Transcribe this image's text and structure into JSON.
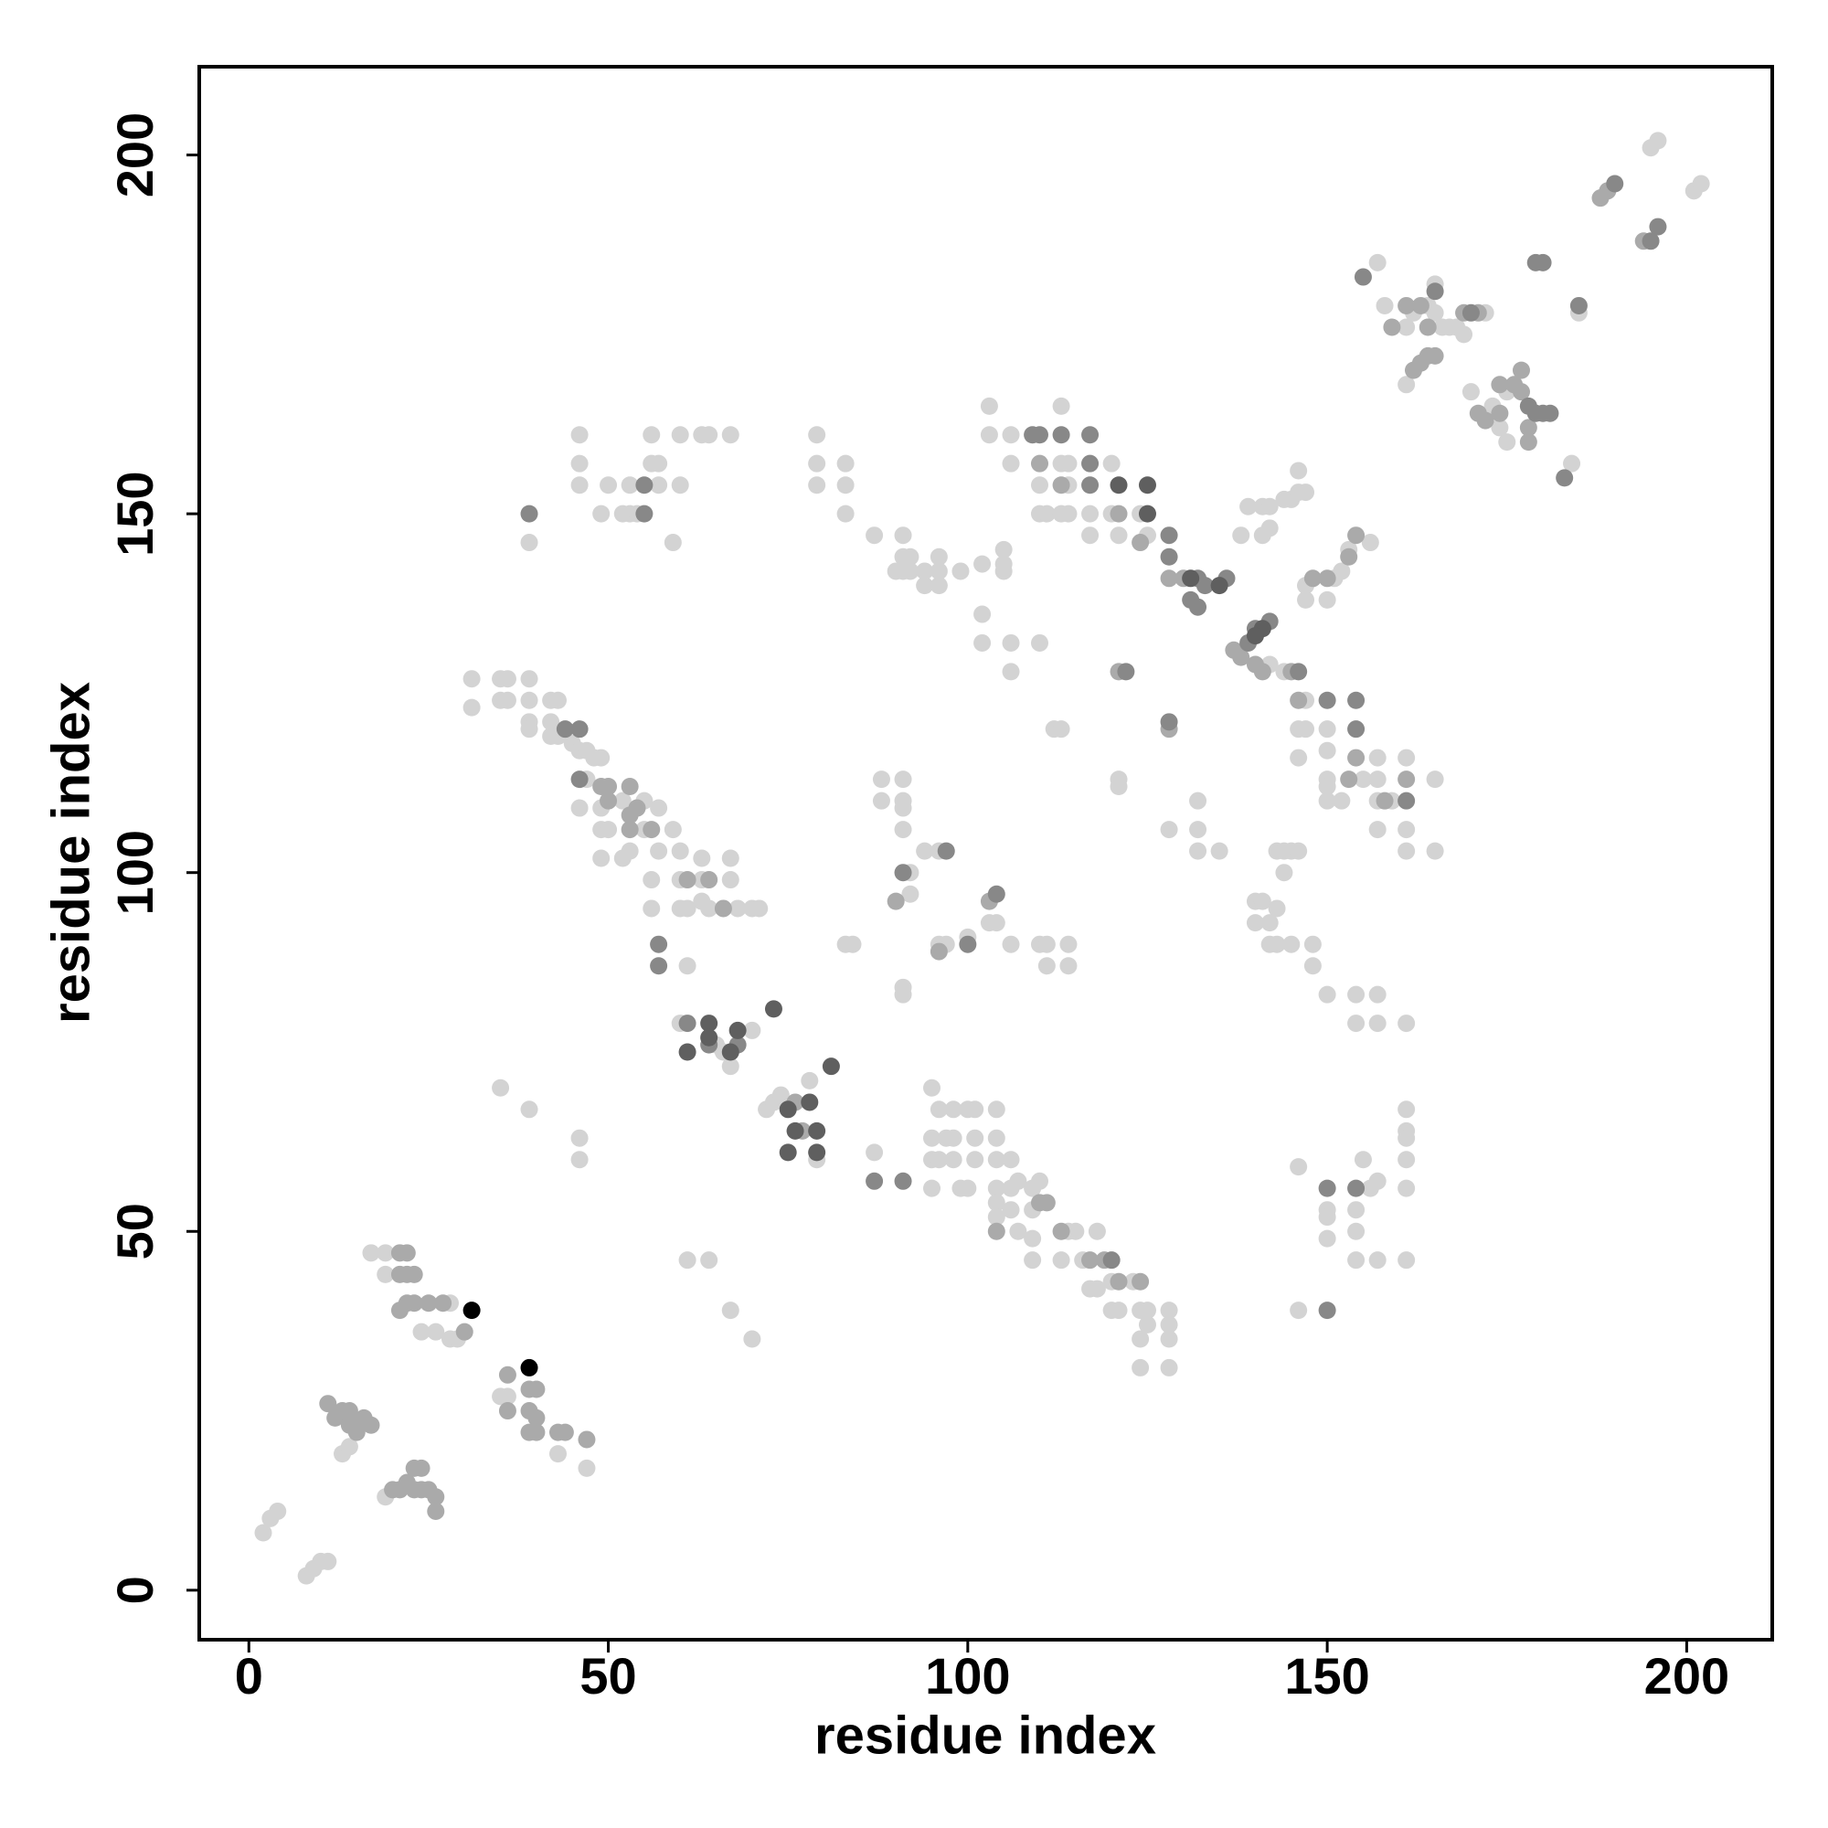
{
  "chart_data": {
    "type": "scatter",
    "x_label": "residue index",
    "y_label": "residue index",
    "xlim": [
      -6.9,
      211.9
    ],
    "ylim": [
      -6.9,
      212.3
    ],
    "xticks": [
      0,
      50,
      100,
      150,
      200
    ],
    "yticks": [
      0,
      50,
      100,
      150,
      200
    ],
    "grid": false,
    "series": [
      {
        "color": "#d3d3d3",
        "x": [
          2,
          3,
          4,
          8,
          9,
          10,
          11,
          13,
          14,
          19,
          17,
          19,
          19,
          24,
          26,
          28,
          29,
          28,
          35,
          36,
          43,
          47,
          35,
          39,
          46,
          46,
          61,
          64,
          67,
          70,
          31,
          31,
          35,
          36,
          35,
          36,
          39,
          39,
          39,
          39,
          42,
          42,
          43,
          42,
          43,
          45,
          46,
          47,
          48,
          49,
          47,
          52,
          55,
          57,
          46,
          49,
          49,
          50,
          55,
          59,
          49,
          52,
          53,
          57,
          60,
          63,
          67,
          56,
          60,
          63,
          67,
          56,
          60,
          61,
          63,
          64,
          68,
          70,
          71,
          61,
          59,
          39,
          46,
          46,
          46,
          49,
          50,
          52,
          53,
          53,
          54,
          56,
          57,
          56,
          57,
          60,
          60,
          63,
          64,
          67,
          79,
          79,
          79,
          83,
          83,
          83,
          60,
          65,
          66,
          67,
          70,
          72,
          73,
          74,
          79,
          78,
          83,
          84,
          88,
          88,
          91,
          91,
          91,
          91,
          92,
          92,
          94,
          96,
          96,
          97,
          100,
          91,
          91,
          103,
          104,
          106,
          110,
          111,
          114,
          111,
          114,
          87,
          87,
          91,
          91,
          92,
          90,
          91,
          92,
          94,
          94,
          96,
          96,
          96,
          99,
          102,
          105,
          105,
          105,
          102,
          102,
          106,
          110,
          106,
          95,
          96,
          98,
          100,
          101,
          104,
          95,
          97,
          98,
          101,
          104,
          95,
          96,
          98,
          101,
          104,
          106,
          95,
          99,
          100,
          104,
          104,
          106,
          107,
          109,
          110,
          104,
          106,
          109,
          107,
          109,
          114,
          115,
          118,
          109,
          113,
          116,
          120,
          123,
          117,
          118,
          120,
          121,
          124,
          125,
          128,
          124,
          125,
          128,
          128,
          124,
          128,
          103,
          103,
          106,
          106,
          113,
          113,
          114,
          120,
          110,
          114,
          110,
          111,
          113,
          114,
          117,
          120,
          124,
          117,
          121,
          125,
          112,
          113,
          121,
          121,
          132,
          128,
          132,
          132,
          135,
          142,
          144,
          147,
          146,
          147,
          146,
          150,
          150,
          150,
          150,
          150,
          152,
          155,
          157,
          157,
          157,
          159,
          161,
          161,
          161,
          157,
          165,
          165,
          138,
          141,
          142,
          141,
          142,
          144,
          145,
          146,
          147,
          146,
          139,
          147,
          147,
          150,
          151,
          152,
          153,
          156,
          143,
          144,
          145,
          146,
          144,
          140,
          141,
          143,
          140,
          142,
          142,
          143,
          145,
          148,
          148,
          150,
          154,
          157,
          154,
          157,
          161,
          161,
          161,
          161,
          161,
          161,
          157,
          156,
          155,
          150,
          150,
          150,
          154,
          154,
          154,
          157,
          161,
          146,
          146,
          157,
          158,
          161,
          162,
          164,
          165,
          165,
          161,
          166,
          167,
          168,
          169,
          172,
          170,
          173,
          175,
          174,
          175,
          185,
          184,
          195,
          196,
          201,
          202
        ],
        "y": [
          8,
          10,
          11,
          2,
          3,
          4,
          4,
          19,
          20,
          13,
          47,
          47,
          44,
          36,
          36,
          35,
          35,
          40,
          27,
          27,
          19,
          17,
          70,
          67,
          63,
          60,
          46,
          46,
          39,
          35,
          127,
          123,
          127,
          127,
          124,
          124,
          127,
          124,
          121,
          120,
          124,
          121,
          124,
          119,
          119,
          118,
          117,
          117,
          116,
          116,
          113,
          110,
          110,
          109,
          109,
          109,
          106,
          106,
          106,
          106,
          102,
          102,
          103,
          103,
          103,
          102,
          102,
          99,
          99,
          99,
          99,
          95,
          95,
          95,
          96,
          95,
          95,
          95,
          95,
          87,
          146,
          146,
          161,
          157,
          154,
          150,
          154,
          150,
          154,
          150,
          150,
          157,
          157,
          161,
          154,
          154,
          161,
          161,
          161,
          161,
          161,
          157,
          154,
          157,
          154,
          150,
          79,
          76,
          75,
          73,
          78,
          67,
          68,
          69,
          60,
          71,
          90,
          90,
          113,
          110,
          113,
          110,
          109,
          106,
          100,
          97,
          103,
          103,
          90,
          90,
          91,
          84,
          83,
          93,
          93,
          90,
          90,
          90,
          90,
          87,
          87,
          61,
          147,
          147,
          144,
          144,
          142,
          142,
          142,
          142,
          140,
          140,
          144,
          142,
          142,
          143,
          145,
          143,
          142,
          136,
          132,
          132,
          132,
          128,
          70,
          67,
          67,
          67,
          67,
          67,
          63,
          63,
          63,
          63,
          63,
          60,
          60,
          60,
          60,
          60,
          60,
          56,
          56,
          56,
          56,
          54,
          56,
          57,
          56,
          57,
          52,
          53,
          53,
          50,
          49,
          50,
          50,
          50,
          46,
          46,
          46,
          43,
          43,
          42,
          42,
          39,
          39,
          39,
          39,
          39,
          35,
          37,
          37,
          35,
          31,
          31,
          165,
          161,
          161,
          157,
          165,
          157,
          157,
          157,
          154,
          154,
          150,
          150,
          150,
          150,
          150,
          150,
          150,
          147,
          147,
          147,
          120,
          120,
          113,
          112,
          110,
          106,
          106,
          103,
          103,
          129,
          128,
          124,
          120,
          120,
          116,
          120,
          117,
          113,
          112,
          110,
          110,
          113,
          116,
          113,
          110,
          110,
          116,
          106,
          103,
          106,
          113,
          103,
          147,
          147,
          148,
          151,
          151,
          152,
          152,
          153,
          153,
          156,
          151,
          138,
          140,
          138,
          141,
          142,
          145,
          146,
          103,
          103,
          103,
          103,
          100,
          96,
          96,
          95,
          93,
          93,
          90,
          90,
          90,
          90,
          87,
          83,
          83,
          83,
          79,
          79,
          79,
          67,
          64,
          63,
          60,
          56,
          57,
          56,
          60,
          53,
          52,
          49,
          53,
          50,
          46,
          46,
          46,
          59,
          39,
          185,
          179,
          176,
          178,
          179,
          178,
          182,
          168,
          176,
          176,
          176,
          175,
          178,
          167,
          165,
          167,
          162,
          160,
          178,
          157,
          201,
          202,
          195,
          196
        ]
      },
      {
        "color": "#aaaaaa",
        "x": [
          11,
          12,
          13,
          14,
          14,
          15,
          15,
          16,
          17,
          20,
          21,
          22,
          23,
          24,
          23,
          24,
          25,
          26,
          26,
          21,
          22,
          21,
          22,
          23,
          21,
          22,
          23,
          25,
          27,
          30,
          36,
          39,
          40,
          39,
          40,
          39,
          40,
          43,
          44,
          47,
          36,
          49,
          50,
          53,
          50,
          53,
          54,
          53,
          56,
          61,
          64,
          66,
          76,
          77,
          96,
          90,
          103,
          110,
          113,
          121,
          124,
          128,
          130,
          121,
          128,
          140,
          141,
          137,
          138,
          145,
          146,
          153,
          154,
          158,
          161,
          148,
          150,
          153,
          154,
          159,
          161,
          163,
          164,
          164,
          163,
          162,
          165,
          169,
          171,
          171,
          172,
          174,
          177,
          177,
          178,
          178,
          174,
          176,
          194,
          188,
          189,
          104,
          110,
          113,
          117,
          119,
          111,
          124,
          121
        ],
        "y": [
          26,
          24,
          25,
          25,
          23,
          22,
          23,
          24,
          23,
          14,
          14,
          15,
          17,
          17,
          14,
          14,
          14,
          13,
          11,
          47,
          47,
          44,
          44,
          44,
          39,
          40,
          40,
          40,
          40,
          36,
          25,
          28,
          28,
          25,
          24,
          22,
          22,
          22,
          22,
          21,
          30,
          112,
          112,
          112,
          110,
          108,
          109,
          106,
          106,
          99,
          99,
          95,
          68,
          64,
          89,
          96,
          96,
          157,
          154,
          150,
          146,
          141,
          141,
          128,
          120,
          129,
          128,
          131,
          130,
          128,
          124,
          113,
          116,
          110,
          113,
          141,
          141,
          144,
          147,
          176,
          179,
          179,
          176,
          172,
          171,
          170,
          172,
          178,
          178,
          164,
          163,
          164,
          170,
          167,
          162,
          160,
          168,
          168,
          188,
          194,
          195,
          50,
          54,
          50,
          46,
          46,
          54,
          43,
          43
        ]
      },
      {
        "color": "#888888",
        "x": [
          39,
          55,
          55,
          57,
          57,
          61,
          64,
          68,
          87,
          91,
          91,
          100,
          109,
          110,
          113,
          117,
          117,
          117,
          128,
          128,
          132,
          133,
          131,
          132,
          136,
          122,
          128,
          139,
          140,
          142,
          146,
          150,
          154,
          154,
          161,
          150,
          154,
          150,
          155,
          170,
          165,
          178,
          179,
          180,
          181,
          183,
          179,
          180,
          185,
          190,
          196,
          195,
          104,
          44,
          46,
          46,
          120,
          97
        ],
        "y": [
          150,
          154,
          150,
          90,
          87,
          79,
          76,
          76,
          57,
          57,
          100,
          90,
          161,
          161,
          161,
          161,
          157,
          154,
          147,
          144,
          141,
          140,
          138,
          137,
          141,
          128,
          121,
          132,
          134,
          135,
          128,
          124,
          124,
          120,
          110,
          56,
          56,
          39,
          183,
          178,
          181,
          165,
          164,
          164,
          164,
          155,
          185,
          185,
          179,
          196,
          190,
          188,
          97,
          120,
          120,
          113,
          46,
          103
        ]
      },
      {
        "color": "#5f5f5f",
        "x": [
          61,
          64,
          64,
          67,
          68,
          75,
          78,
          76,
          79,
          75,
          79,
          73,
          81,
          121,
          125,
          135,
          131,
          141,
          140,
          125
        ],
        "y": [
          75,
          79,
          77,
          75,
          78,
          67,
          68,
          64,
          64,
          61,
          61,
          81,
          73,
          154,
          154,
          140,
          141,
          134,
          133,
          150
        ]
      },
      {
        "color": "#000000",
        "x": [
          31,
          39
        ],
        "y": [
          39,
          31
        ]
      }
    ]
  }
}
